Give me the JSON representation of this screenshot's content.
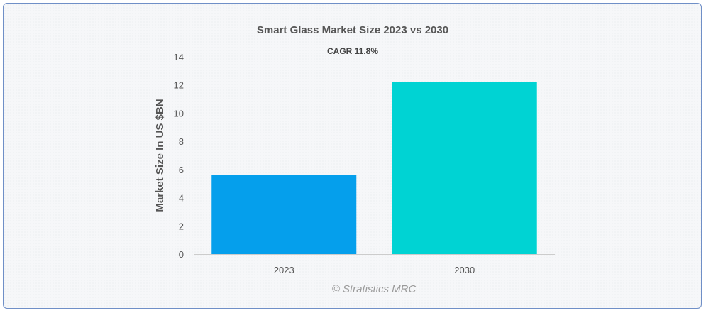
{
  "chart_data": {
    "type": "bar",
    "title": "Smart Glass Market Size 2023 vs 2030",
    "subtitle": "CAGR 11.8%",
    "categories": [
      "2023",
      "2030"
    ],
    "values": [
      5.6,
      12.2
    ],
    "ylabel": "Market Size In US $BN",
    "xlabel": "",
    "ylim": [
      0,
      14
    ],
    "yticks": [
      0,
      2,
      4,
      6,
      8,
      10,
      12,
      14
    ],
    "grid": false,
    "legend": "none",
    "bar_colors": [
      "#059fec",
      "#00d3d3"
    ]
  },
  "credit": "© Stratistics MRC",
  "colors": {
    "frame_border": "#6f8fc7",
    "axis": "#cccccc"
  }
}
